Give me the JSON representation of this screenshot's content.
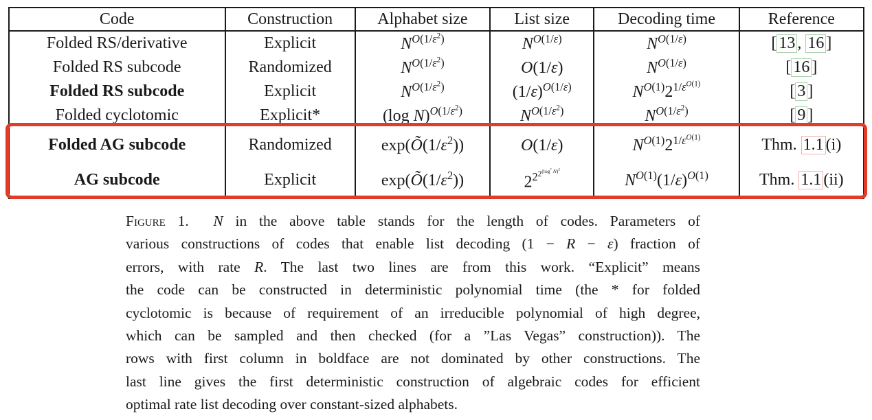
{
  "page": {
    "background": "#ffffff",
    "text_color": "#1a1a1a"
  },
  "highlight": {
    "color": "#e23b28",
    "purpose": "marks the last two table rows (this work)"
  },
  "link_box_colors": {
    "citation_green": "#aed3ae",
    "internal_ref_red": "#f0b1a9"
  },
  "table": {
    "headers": [
      "Code",
      "Construction",
      "Alphabet size",
      "List size",
      "Decoding time",
      "Reference"
    ],
    "rows": [
      {
        "code": "Folded RS/derivative",
        "bold": false,
        "highlight": false,
        "construction": "Explicit",
        "alphabet_size": "N^{O(1/ε^{2})}",
        "list_size": "N^{O(1/ε)}",
        "decoding_time": "N^{O(1/ε)}",
        "reference": [
          {
            "text": "[",
            "box": null
          },
          {
            "text": "13",
            "box": "green"
          },
          {
            "text": ", ",
            "box": null
          },
          {
            "text": "16",
            "box": "green"
          },
          {
            "text": "]",
            "box": null
          }
        ]
      },
      {
        "code": "Folded RS subcode",
        "bold": false,
        "highlight": false,
        "construction": "Randomized",
        "alphabet_size": "N^{O(1/ε^{2})}",
        "list_size": "O(1/ε)",
        "decoding_time": "N^{O(1/ε)}",
        "reference": [
          {
            "text": "[",
            "box": null
          },
          {
            "text": "16",
            "box": "green"
          },
          {
            "text": "]",
            "box": null
          }
        ]
      },
      {
        "code": "Folded RS subcode",
        "bold": true,
        "highlight": false,
        "construction": "Explicit",
        "alphabet_size": "N^{O(1/ε^{2})}",
        "list_size": "(1/ε)^{O(1/ε)}",
        "decoding_time": "N^{O(1)}2^{1/ε^{O(1)}}",
        "reference": [
          {
            "text": "[",
            "box": null
          },
          {
            "text": "3",
            "box": "green"
          },
          {
            "text": "]",
            "box": null
          }
        ]
      },
      {
        "code": "Folded cyclotomic",
        "bold": false,
        "highlight": false,
        "construction": "Explicit*",
        "alphabet_size": "(log N)^{O(1/ε^{2})}",
        "list_size": "N^{O(1/ε^{2})}",
        "decoding_time": "N^{O(1/ε^{2})}",
        "reference": [
          {
            "text": "[",
            "box": null
          },
          {
            "text": "9",
            "box": "green"
          },
          {
            "text": "]",
            "box": null
          }
        ]
      },
      {
        "code": "Folded AG subcode",
        "bold": true,
        "highlight": true,
        "construction": "Randomized",
        "alphabet_size": "exp(Õ(1/ε^{2}))",
        "list_size": "O(1/ε)",
        "decoding_time": "N^{O(1)}2^{1/ε^{O(1)}}",
        "reference": [
          {
            "text": "Thm. ",
            "box": null
          },
          {
            "text": "1.1",
            "box": "red"
          },
          {
            "text": "(i)",
            "box": null
          }
        ]
      },
      {
        "code": "AG subcode",
        "bold": true,
        "highlight": true,
        "construction": "Explicit",
        "alphabet_size": "exp(Õ(1/ε^{2}))",
        "list_size": "2^{2^{2^{(log^{*} N)^{2}}}}",
        "decoding_time": "N^{O(1)}(1/ε)^{O(1)}",
        "reference": [
          {
            "text": "Thm. ",
            "box": null
          },
          {
            "text": "1.1",
            "box": "red"
          },
          {
            "text": "(ii)",
            "box": null
          }
        ]
      }
    ]
  },
  "caption": {
    "label": "Figure 1.",
    "lines": [
      "N in the above table stands for the length of codes. Parameters of",
      "various constructions of codes that enable list decoding (1 − R − ε) fraction of",
      "errors, with rate R.  The last two lines are from this work.  “Explicit” means",
      "the code can be constructed in deterministic polynomial time (the * for folded",
      "cyclotomic is because of requirement of an irreducible polynomial of high degree,",
      "which can be sampled and then checked (for a ”Las Vegas” construction)). The",
      "rows with first column in boldface are not dominated by other constructions. The",
      "last line gives the first deterministic construction of algebraic codes for efficient",
      "optimal rate list decoding over constant-sized alphabets."
    ]
  }
}
